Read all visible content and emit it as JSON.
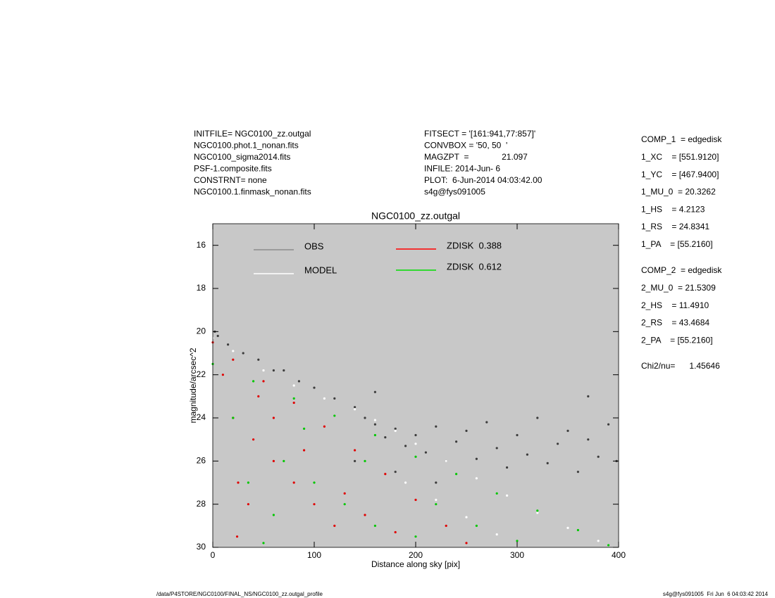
{
  "header": {
    "left": [
      "INITFILE= NGC0100_zz.outgal",
      "NGC0100.phot.1_nonan.fits",
      "NGC0100_sigma2014.fits",
      "PSF-1.composite.fits",
      "CONSTRNT= none",
      "NGC0100.1.finmask_nonan.fits"
    ],
    "middle": [
      "FITSECT = '[161:941,77:857]'",
      "CONVBOX = '50, 50  '",
      "MAGZPT  =              21.097",
      "INFILE: 2014-Jun- 6",
      "PLOT:  6-Jun-2014 04:03:42.00",
      "s4g@fys091005"
    ],
    "comp1": [
      "COMP_1  = edgedisk",
      "1_XC    = [551.9120]",
      "1_YC    = [467.9400]",
      "1_MU_0  = 20.3262",
      "1_HS    = 4.2123",
      "1_RS    = 24.8341",
      "1_PA    = [55.2160]"
    ],
    "comp2": [
      "COMP_2  = edgedisk",
      "2_MU_0  = 21.5309",
      "2_HS    = 11.4910",
      "2_RS    = 43.4684",
      "2_PA    = [55.2160]"
    ],
    "chi2": "Chi2/nu=      1.45646"
  },
  "footer": {
    "left": "/data/P4STORE/NGC0100/FINAL_NS/NGC0100_zz.outgal_profile",
    "right": "s4g@fys091005  Fri Jun  6 04:03:42 2014"
  },
  "chart_data": {
    "type": "scatter",
    "title": "NGC0100_zz.outgal",
    "x_label": "Distance along sky [pix]",
    "y_label": "magnitude/arcsec^2",
    "xlim": [
      0,
      400
    ],
    "xticks": [
      0,
      100,
      200,
      300,
      400
    ],
    "ylim": [
      30,
      15
    ],
    "yticks": [
      16,
      18,
      20,
      22,
      24,
      26,
      28,
      30
    ],
    "background": "#c8c8c8",
    "series": [
      {
        "name": "OBS",
        "color": "#3c3c3c",
        "legend_color": "#8c8c8c",
        "x": [
          2,
          5,
          15,
          30,
          45,
          60,
          70,
          85,
          100,
          120,
          140,
          150,
          160,
          170,
          180,
          190,
          200,
          210,
          220,
          230,
          240,
          250,
          260,
          270,
          280,
          290,
          300,
          310,
          320,
          330,
          340,
          350,
          360,
          370,
          380,
          390,
          398,
          140,
          180,
          220,
          160,
          370
        ],
        "values": [
          20.0,
          20.2,
          20.6,
          21.0,
          21.3,
          21.8,
          21.8,
          22.3,
          22.6,
          23.1,
          23.5,
          24.0,
          24.3,
          24.9,
          24.5,
          25.3,
          24.8,
          25.6,
          24.4,
          26.0,
          25.1,
          24.6,
          25.9,
          24.2,
          25.4,
          26.3,
          24.8,
          25.7,
          24.0,
          26.1,
          25.2,
          24.6,
          26.5,
          25.0,
          25.8,
          24.3,
          26.0,
          26.0,
          26.5,
          27.0,
          22.8,
          23.0
        ]
      },
      {
        "name": "MODEL",
        "color": "#ffffff",
        "legend_color": "#ffffff",
        "x": [
          0,
          20,
          50,
          80,
          110,
          140,
          160,
          180,
          200,
          230,
          260,
          290,
          320,
          350,
          380,
          190,
          220,
          250,
          280,
          300
        ],
        "values": [
          20.3,
          20.9,
          21.8,
          22.5,
          23.1,
          23.6,
          24.1,
          24.6,
          25.2,
          26.0,
          26.8,
          27.6,
          28.4,
          29.1,
          29.7,
          27.0,
          27.8,
          28.6,
          29.4,
          30.0
        ]
      },
      {
        "name": "ZDISK  0.388",
        "color": "#e00000",
        "legend_color": "#ff0000",
        "x": [
          0,
          20,
          50,
          80,
          110,
          140,
          170,
          200,
          230,
          250,
          10,
          20,
          25,
          24,
          40,
          60,
          80,
          100,
          120,
          60,
          90,
          130,
          150,
          180,
          35,
          45
        ],
        "values": [
          20.5,
          21.3,
          22.3,
          23.3,
          24.4,
          25.5,
          26.6,
          27.8,
          29.0,
          29.8,
          22.0,
          24.0,
          27.0,
          29.5,
          25.0,
          26.0,
          27.0,
          28.0,
          29.0,
          24.0,
          25.5,
          27.5,
          28.5,
          29.3,
          28.0,
          23.0
        ]
      },
      {
        "name": "ZDISK  0.612",
        "color": "#00c800",
        "legend_color": "#00dd00",
        "x": [
          0,
          40,
          80,
          120,
          160,
          200,
          240,
          280,
          320,
          360,
          390,
          20,
          35,
          50,
          70,
          100,
          130,
          160,
          200,
          90,
          150,
          220,
          260,
          300,
          60
        ],
        "values": [
          21.5,
          22.3,
          23.1,
          23.9,
          24.8,
          25.8,
          26.6,
          27.5,
          28.3,
          29.2,
          29.9,
          24.0,
          27.0,
          29.8,
          26.0,
          27.0,
          28.0,
          29.0,
          29.5,
          24.5,
          26.0,
          28.0,
          29.0,
          29.7,
          28.5
        ]
      }
    ]
  }
}
